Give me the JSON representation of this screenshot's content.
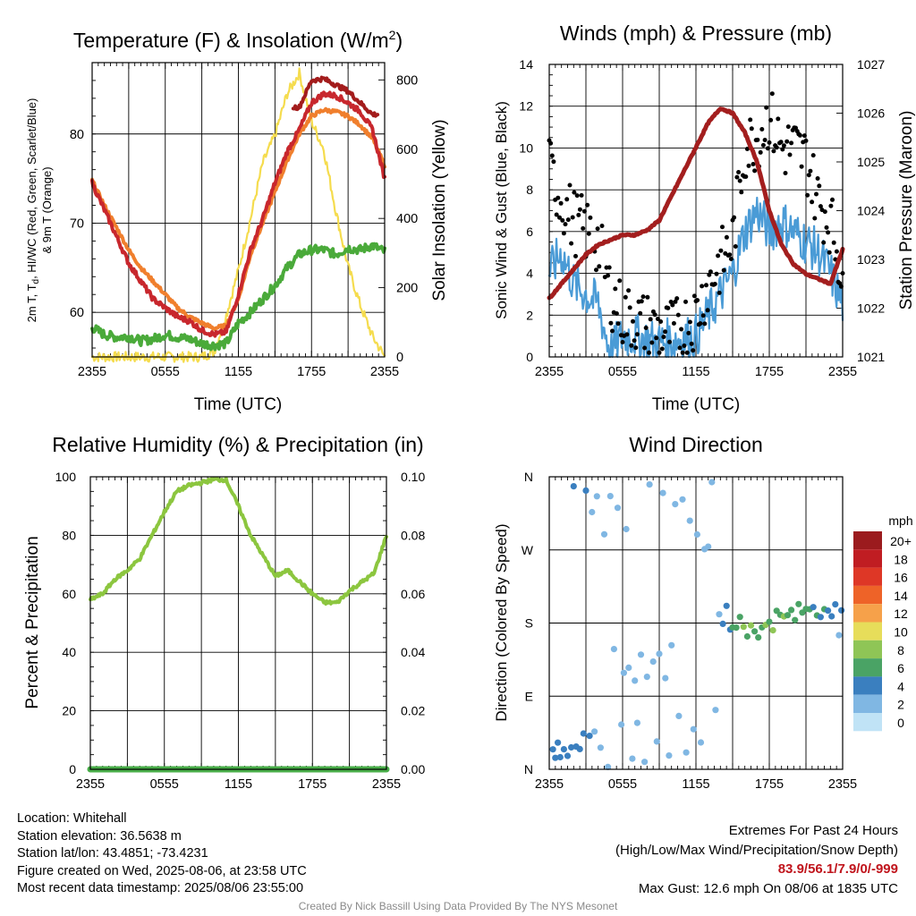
{
  "panels": {
    "temperature": {
      "title": "Temperature (F) & Insolation (W/m",
      "title_sup": "2",
      "title_close": ")",
      "ylabel_line1": "2m T, T",
      "ylabel_sub": "d",
      "ylabel_line1_rest": ", HI/WC (Red, Green, Scarlet/Blue)",
      "ylabel_line2": "& 9m T (Orange)",
      "y2label": "Solar Insolation (Yellow)",
      "xlabel": "Time (UTC)"
    },
    "winds": {
      "title": "Winds (mph) & Pressure (mb)",
      "ylabel": "Sonic Wind & Gust (Blue, Black)",
      "y2label": "Station Pressure (Maroon)",
      "xlabel": "Time (UTC)"
    },
    "humidity": {
      "title": "Relative Humidity (%) & Precipitation (in)",
      "ylabel": "Percent & Precipitation"
    },
    "direction": {
      "title": "Wind Direction",
      "ylabel": "Direction (Colored By Speed)",
      "legend_title": "mph",
      "legend_labels": [
        "20+",
        "18",
        "16",
        "14",
        "12",
        "10",
        "8",
        "6",
        "4",
        "2",
        "0"
      ],
      "legend_colors": [
        "#9b1b1e",
        "#c01d22",
        "#de3726",
        "#ee6328",
        "#f6a14a",
        "#e7dd5a",
        "#8fc556",
        "#4aa365",
        "#3a7fbf",
        "#80b7e3",
        "#c0e3f6"
      ]
    }
  },
  "colors": {
    "temp": "#c8272d",
    "dewpoint": "#4aaa3a",
    "heat_index": "#a31c1c",
    "temp_9m": "#f07f2d",
    "insolation": "#f5dc4e",
    "wind": "#4a9bd6",
    "gust": "#000000",
    "pressure": "#a31e1e",
    "rh": "#8cc63f",
    "precip": "#48ad48"
  },
  "info": {
    "location": "Location: Whitehall",
    "elevation": "Station elevation: 36.5638 m",
    "latlon": "Station lat/lon: 43.4851; -73.4231",
    "created": "Figure created on Wed, 2025-08-06, at 23:58 UTC",
    "recent": "Most recent data timestamp: 2025/08/06 23:55:00",
    "extremes_title": "Extremes For Past 24 Hours",
    "extremes_desc": "(High/Low/Max Wind/Precipitation/Snow Depth)",
    "extremes_values": "83.9/56.1/7.9/0/-999",
    "max_gust": "Max Gust: 12.6 mph On 08/06 at 1835 UTC",
    "credit": "Created By Nick Bassill Using Data Provided By The NYS Mesonet"
  },
  "chart_data": [
    {
      "type": "line",
      "title": "Temperature (F) & Insolation (W/m2)",
      "xlabel": "Time (UTC)",
      "ylabel": "2m T, Td, HI/WC (Red, Green, Scarlet/Blue) & 9m T (Orange)",
      "y2label": "Solar Insolation (Yellow)",
      "x_ticks": [
        "2355",
        "0555",
        "1155",
        "1755",
        "2355"
      ],
      "ylim": [
        55,
        88
      ],
      "y_ticks": [
        60,
        70,
        80
      ],
      "y2lim": [
        0,
        850
      ],
      "y2_ticks": [
        0,
        200,
        400,
        600,
        800
      ],
      "x_hours": [
        0,
        1,
        2,
        3,
        4,
        5,
        6,
        7,
        8,
        9,
        10,
        11,
        12,
        13,
        14,
        15,
        16,
        17,
        18,
        19,
        20,
        21,
        22,
        23,
        24
      ],
      "series": [
        {
          "name": "2m T",
          "axis": "left",
          "values": [
            74.5,
            71.5,
            68.5,
            65.5,
            63.5,
            61.5,
            60.5,
            59.5,
            59.0,
            58.0,
            57.5,
            57.8,
            62.0,
            67.0,
            70.5,
            74.5,
            78.0,
            80.5,
            83.5,
            84.5,
            84.3,
            83.5,
            82.5,
            80.5,
            75.0
          ]
        },
        {
          "name": "9m T",
          "axis": "left",
          "values": [
            74.8,
            72.0,
            69.5,
            67.0,
            65.0,
            63.5,
            62.0,
            60.5,
            59.5,
            58.8,
            58.2,
            58.5,
            61.5,
            66.5,
            70.0,
            73.5,
            77.0,
            80.0,
            82.0,
            82.7,
            82.5,
            82.0,
            81.0,
            79.5,
            76.5
          ]
        },
        {
          "name": "Heat index",
          "axis": "left",
          "values": [
            null,
            null,
            null,
            null,
            null,
            null,
            null,
            null,
            null,
            null,
            null,
            null,
            null,
            null,
            null,
            null,
            null,
            83.0,
            86.0,
            86.2,
            85.5,
            84.8,
            83.5,
            82.2,
            null
          ]
        },
        {
          "name": "Td",
          "axis": "left",
          "values": [
            58.3,
            57.5,
            57.2,
            57.3,
            56.8,
            57.0,
            57.5,
            57.2,
            57.0,
            56.5,
            56.3,
            56.5,
            58.8,
            60.0,
            61.5,
            63.0,
            65.0,
            66.5,
            67.0,
            67.0,
            66.5,
            67.2,
            67.0,
            67.5,
            66.8
          ]
        },
        {
          "name": "Solar Insolation",
          "axis": "right",
          "values": [
            0,
            0,
            0,
            0,
            0,
            0,
            0,
            0,
            0,
            0,
            15,
            120,
            250,
            400,
            560,
            640,
            760,
            820,
            680,
            600,
            420,
            260,
            150,
            60,
            0
          ]
        }
      ]
    },
    {
      "type": "line",
      "title": "Winds (mph) & Pressure (mb)",
      "xlabel": "Time (UTC)",
      "ylabel": "Sonic Wind & Gust (Blue, Black)",
      "y2label": "Station Pressure (Maroon)",
      "x_ticks": [
        "2355",
        "0555",
        "1155",
        "1755",
        "2355"
      ],
      "ylim": [
        0,
        14
      ],
      "y_ticks": [
        0,
        2,
        4,
        6,
        8,
        10,
        12,
        14
      ],
      "y2lim": [
        1021,
        1027
      ],
      "y2_ticks": [
        1021,
        1022,
        1023,
        1024,
        1025,
        1026,
        1027
      ],
      "x_hours": [
        0,
        1,
        2,
        3,
        4,
        5,
        6,
        7,
        8,
        9,
        10,
        11,
        12,
        13,
        14,
        15,
        16,
        17,
        18,
        19,
        20,
        21,
        22,
        23,
        24
      ],
      "series": [
        {
          "name": "Sonic Wind",
          "axis": "left",
          "values": [
            4.0,
            5.0,
            3.5,
            3.0,
            2.5,
            0.2,
            1.0,
            1.0,
            0.8,
            0.7,
            0.8,
            0.9,
            1.0,
            2.0,
            3.0,
            4.0,
            6.0,
            7.0,
            6.0,
            6.5,
            6.0,
            5.5,
            5.0,
            4.0,
            2.5
          ]
        },
        {
          "name": "Gust",
          "axis": "left",
          "values": [
            9.0,
            7.5,
            6.5,
            6.0,
            5.5,
            3.0,
            2.0,
            1.8,
            1.5,
            1.2,
            1.2,
            1.5,
            2.0,
            3.5,
            4.5,
            5.5,
            10.0,
            10.5,
            11.5,
            10.0,
            10.0,
            9.5,
            7.5,
            6.5,
            4.0
          ]
        },
        {
          "name": "Station Pressure",
          "axis": "right",
          "values": [
            1022.2,
            1022.5,
            1022.8,
            1023.1,
            1023.3,
            1023.4,
            1023.5,
            1023.5,
            1023.6,
            1023.8,
            1024.3,
            1024.8,
            1025.3,
            1025.8,
            1026.1,
            1026.0,
            1025.6,
            1025.0,
            1024.0,
            1023.3,
            1022.9,
            1022.7,
            1022.6,
            1022.5,
            1023.2
          ]
        }
      ]
    },
    {
      "type": "line",
      "title": "Relative Humidity (%) & Precipitation (in)",
      "ylabel": "Percent & Precipitation",
      "x_ticks": [
        "2355",
        "0555",
        "1155",
        "1755",
        "2355"
      ],
      "ylim": [
        0,
        100
      ],
      "y_ticks": [
        0,
        20,
        40,
        60,
        80,
        100
      ],
      "y2lim": [
        0,
        0.1
      ],
      "y2_ticks": [
        "0.00",
        "0.02",
        "0.04",
        "0.06",
        "0.08",
        "0.10"
      ],
      "x_hours": [
        0,
        1,
        2,
        3,
        4,
        5,
        6,
        7,
        8,
        9,
        10,
        11,
        12,
        13,
        14,
        15,
        16,
        17,
        18,
        19,
        20,
        21,
        22,
        23,
        24
      ],
      "series": [
        {
          "name": "RH",
          "axis": "left",
          "values": [
            58,
            60,
            65,
            68,
            72,
            80,
            88,
            95,
            97,
            98,
            99,
            99,
            90,
            80,
            73,
            66,
            68,
            64,
            60,
            57,
            57,
            61,
            64,
            67,
            80
          ]
        },
        {
          "name": "Precipitation",
          "axis": "right",
          "values": [
            0,
            0,
            0,
            0,
            0,
            0,
            0,
            0,
            0,
            0,
            0,
            0,
            0,
            0,
            0,
            0,
            0,
            0,
            0,
            0,
            0,
            0,
            0,
            0,
            0
          ]
        }
      ]
    },
    {
      "type": "scatter",
      "title": "Wind Direction",
      "ylabel": "Direction (Colored By Speed)",
      "x_ticks": [
        "2355",
        "0555",
        "1155",
        "1755",
        "2355"
      ],
      "y_ticks": [
        "N",
        "E",
        "S",
        "W",
        "N"
      ],
      "ylim": [
        0,
        360
      ],
      "legend_title": "mph",
      "legend_placement": "right",
      "points": [
        {
          "x": 0.3,
          "y": 30,
          "speed": 4
        },
        {
          "x": 0.5,
          "y": 20,
          "speed": 4
        },
        {
          "x": 0.7,
          "y": 35,
          "speed": 4
        },
        {
          "x": 0.9,
          "y": 15,
          "speed": 3
        },
        {
          "x": 1.2,
          "y": 28,
          "speed": 4
        },
        {
          "x": 1.5,
          "y": 12,
          "speed": 3
        },
        {
          "x": 1.8,
          "y": 25,
          "speed": 4
        },
        {
          "x": 2.0,
          "y": 355,
          "speed": 4
        },
        {
          "x": 2.2,
          "y": 30,
          "speed": 3
        },
        {
          "x": 2.5,
          "y": 18,
          "speed": 3
        },
        {
          "x": 2.8,
          "y": 40,
          "speed": 3
        },
        {
          "x": 3.0,
          "y": 345,
          "speed": 3
        },
        {
          "x": 3.3,
          "y": 35,
          "speed": 3
        },
        {
          "x": 3.5,
          "y": 310,
          "speed": 2
        },
        {
          "x": 3.7,
          "y": 50,
          "speed": 2
        },
        {
          "x": 3.9,
          "y": 330,
          "speed": 2
        },
        {
          "x": 4.2,
          "y": 20,
          "speed": 2
        },
        {
          "x": 4.5,
          "y": 290,
          "speed": 2
        },
        {
          "x": 4.8,
          "y": 5,
          "speed": 1
        },
        {
          "x": 5.0,
          "y": 340,
          "speed": 1
        },
        {
          "x": 5.3,
          "y": 150,
          "speed": 1
        },
        {
          "x": 5.6,
          "y": 320,
          "speed": 1
        },
        {
          "x": 5.9,
          "y": 60,
          "speed": 1
        },
        {
          "x": 6.1,
          "y": 120,
          "speed": 1
        },
        {
          "x": 6.3,
          "y": 300,
          "speed": 1
        },
        {
          "x": 6.5,
          "y": 130,
          "speed": 1
        },
        {
          "x": 6.8,
          "y": 20,
          "speed": 1
        },
        {
          "x": 7.0,
          "y": 110,
          "speed": 1
        },
        {
          "x": 7.2,
          "y": 55,
          "speed": 1
        },
        {
          "x": 7.5,
          "y": 140,
          "speed": 1
        },
        {
          "x": 7.8,
          "y": 5,
          "speed": 1
        },
        {
          "x": 8.0,
          "y": 120,
          "speed": 1
        },
        {
          "x": 8.2,
          "y": 350,
          "speed": 1
        },
        {
          "x": 8.5,
          "y": 130,
          "speed": 1
        },
        {
          "x": 8.8,
          "y": 30,
          "speed": 1
        },
        {
          "x": 9.0,
          "y": 145,
          "speed": 1
        },
        {
          "x": 9.3,
          "y": 340,
          "speed": 1
        },
        {
          "x": 9.5,
          "y": 115,
          "speed": 1
        },
        {
          "x": 9.8,
          "y": 20,
          "speed": 1
        },
        {
          "x": 10.0,
          "y": 150,
          "speed": 1
        },
        {
          "x": 10.3,
          "y": 320,
          "speed": 1
        },
        {
          "x": 10.6,
          "y": 60,
          "speed": 1
        },
        {
          "x": 10.9,
          "y": 330,
          "speed": 1
        },
        {
          "x": 11.2,
          "y": 25,
          "speed": 2
        },
        {
          "x": 11.5,
          "y": 305,
          "speed": 2
        },
        {
          "x": 11.8,
          "y": 45,
          "speed": 2
        },
        {
          "x": 12.1,
          "y": 290,
          "speed": 2
        },
        {
          "x": 12.4,
          "y": 30,
          "speed": 2
        },
        {
          "x": 12.7,
          "y": 270,
          "speed": 2
        },
        {
          "x": 13.0,
          "y": 280,
          "speed": 2
        },
        {
          "x": 13.3,
          "y": 350,
          "speed": 2
        },
        {
          "x": 13.6,
          "y": 75,
          "speed": 2
        },
        {
          "x": 13.9,
          "y": 190,
          "speed": 2
        },
        {
          "x": 14.2,
          "y": 185,
          "speed": 3
        },
        {
          "x": 14.5,
          "y": 200,
          "speed": 3
        },
        {
          "x": 14.8,
          "y": 175,
          "speed": 4
        },
        {
          "x": 15.0,
          "y": 180,
          "speed": 5
        },
        {
          "x": 15.3,
          "y": 172,
          "speed": 6
        },
        {
          "x": 15.6,
          "y": 185,
          "speed": 6
        },
        {
          "x": 15.9,
          "y": 178,
          "speed": 7
        },
        {
          "x": 16.2,
          "y": 170,
          "speed": 6
        },
        {
          "x": 16.5,
          "y": 182,
          "speed": 7
        },
        {
          "x": 16.8,
          "y": 176,
          "speed": 6
        },
        {
          "x": 17.1,
          "y": 168,
          "speed": 6
        },
        {
          "x": 17.4,
          "y": 180,
          "speed": 6
        },
        {
          "x": 17.7,
          "y": 174,
          "speed": 7
        },
        {
          "x": 18.0,
          "y": 185,
          "speed": 6
        },
        {
          "x": 18.3,
          "y": 178,
          "speed": 7
        },
        {
          "x": 18.6,
          "y": 190,
          "speed": 6
        },
        {
          "x": 18.9,
          "y": 184,
          "speed": 6
        },
        {
          "x": 19.2,
          "y": 192,
          "speed": 7
        },
        {
          "x": 19.5,
          "y": 186,
          "speed": 5
        },
        {
          "x": 19.8,
          "y": 195,
          "speed": 6
        },
        {
          "x": 20.1,
          "y": 188,
          "speed": 6
        },
        {
          "x": 20.4,
          "y": 198,
          "speed": 5
        },
        {
          "x": 20.7,
          "y": 192,
          "speed": 6
        },
        {
          "x": 21.0,
          "y": 200,
          "speed": 5
        },
        {
          "x": 21.3,
          "y": 195,
          "speed": 6
        },
        {
          "x": 21.6,
          "y": 202,
          "speed": 4
        },
        {
          "x": 21.9,
          "y": 196,
          "speed": 5
        },
        {
          "x": 22.2,
          "y": 188,
          "speed": 4
        },
        {
          "x": 22.5,
          "y": 200,
          "speed": 5
        },
        {
          "x": 22.8,
          "y": 192,
          "speed": 4
        },
        {
          "x": 23.1,
          "y": 185,
          "speed": 3
        },
        {
          "x": 23.4,
          "y": 198,
          "speed": 4
        },
        {
          "x": 23.7,
          "y": 160,
          "speed": 2
        },
        {
          "x": 23.9,
          "y": 190,
          "speed": 4
        }
      ]
    }
  ]
}
